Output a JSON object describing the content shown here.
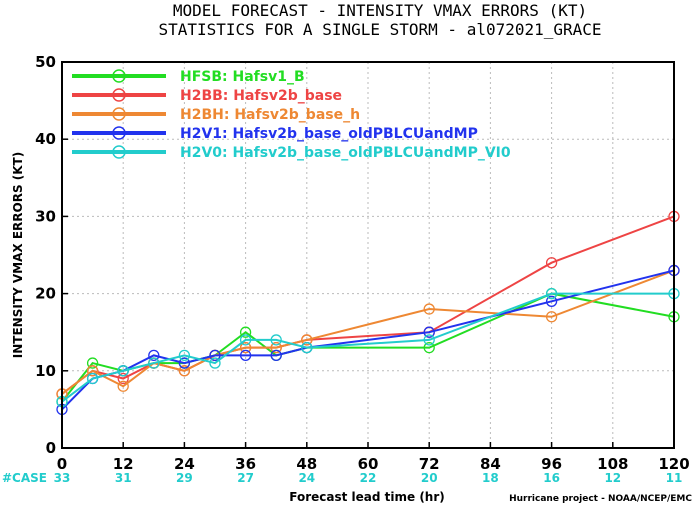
{
  "chart_data": {
    "type": "line",
    "title": "MODEL FORECAST - INTENSITY VMAX ERRORS (KT)",
    "subtitle": "STATISTICS FOR A SINGLE STORM - al072021_GRACE",
    "xlabel": "Forecast lead time (hr)",
    "ylabel": "INTENSITY VMAX ERRORS (KT)",
    "xlim": [
      0,
      120
    ],
    "ylim": [
      0,
      50
    ],
    "x_ticks": [
      0,
      12,
      24,
      36,
      48,
      60,
      72,
      84,
      96,
      108,
      120
    ],
    "y_ticks": [
      0,
      10,
      20,
      30,
      40,
      50
    ],
    "grid": true,
    "legend_position": "top-left",
    "x": [
      0,
      6,
      12,
      18,
      24,
      30,
      36,
      42,
      48,
      72,
      96,
      120
    ],
    "series": [
      {
        "name": "HFSB: Hafsv1_B",
        "color": "#22dd22",
        "values": [
          6,
          11,
          10,
          11,
          11,
          12,
          15,
          12,
          13,
          13,
          20,
          17
        ]
      },
      {
        "name": "H2BB: Hafsv2b_base",
        "color": "#ee4444",
        "values": [
          7,
          10,
          9,
          11,
          10,
          12,
          13,
          13,
          14,
          15,
          24,
          30
        ]
      },
      {
        "name": "H2BH: Hafsv2b_base_h",
        "color": "#ee8833",
        "values": [
          7,
          10,
          8,
          11,
          10,
          12,
          13,
          13,
          14,
          18,
          17,
          23
        ]
      },
      {
        "name": "H2V1: Hafsv2b_base_oldPBLCUandMP",
        "color": "#2233ee",
        "values": [
          5,
          9,
          10,
          12,
          11,
          12,
          12,
          12,
          13,
          15,
          19,
          23
        ]
      },
      {
        "name": "H2V0: Hafsv2b_base_oldPBLCUandMP_VI0",
        "color": "#22cccc",
        "values": [
          6,
          9,
          10,
          11,
          12,
          11,
          14,
          14,
          13,
          14,
          20,
          20
        ]
      }
    ],
    "case_label": "#CASE",
    "case_ticks": [
      0,
      12,
      24,
      36,
      48,
      60,
      72,
      84,
      96,
      108,
      120
    ],
    "case_counts": [
      "33",
      "31",
      "29",
      "27",
      "24",
      "22",
      "20",
      "18",
      "16",
      "12",
      "11"
    ],
    "case_color": "#22cccc",
    "credit": "Hurricane project - NOAA/NCEP/EMC"
  }
}
